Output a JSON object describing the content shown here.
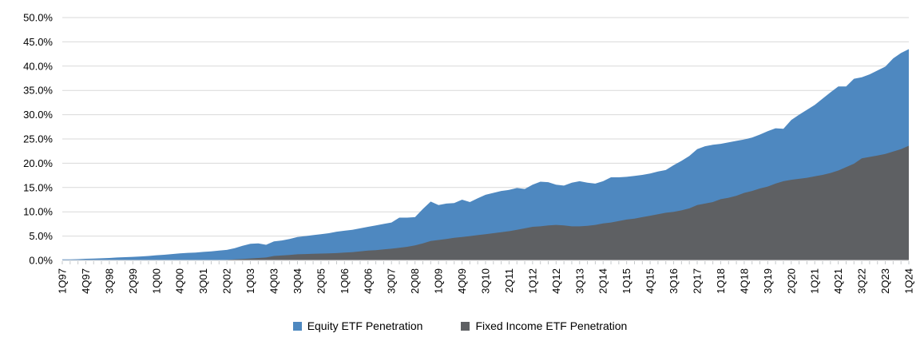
{
  "chart_data": {
    "type": "area",
    "overlapping": true,
    "title": "",
    "xlabel": "",
    "ylabel": "",
    "ylim": [
      0,
      50
    ],
    "y_tick_step": 5,
    "grid": true,
    "legend_position": "bottom",
    "y_tick_labels": [
      "0.0%",
      "5.0%",
      "10.0%",
      "15.0%",
      "20.0%",
      "25.0%",
      "30.0%",
      "35.0%",
      "40.0%",
      "45.0%",
      "50.0%"
    ],
    "x_tick_labels": [
      "1Q97",
      "4Q97",
      "3Q98",
      "2Q99",
      "1Q00",
      "4Q00",
      "3Q01",
      "2Q02",
      "1Q03",
      "4Q03",
      "3Q04",
      "2Q05",
      "1Q06",
      "4Q06",
      "3Q07",
      "2Q08",
      "1Q09",
      "4Q09",
      "3Q10",
      "2Q11",
      "1Q12",
      "4Q12",
      "3Q13",
      "2Q14",
      "1Q15",
      "4Q15",
      "3Q16",
      "2Q17",
      "1Q18",
      "4Q18",
      "3Q19",
      "2Q20",
      "1Q21",
      "4Q21",
      "3Q22",
      "2Q23",
      "1Q24"
    ],
    "x_tick_label_every": 3,
    "x": [
      "1Q97",
      "2Q97",
      "3Q97",
      "4Q97",
      "1Q98",
      "2Q98",
      "3Q98",
      "4Q98",
      "1Q99",
      "2Q99",
      "3Q99",
      "4Q99",
      "1Q00",
      "2Q00",
      "3Q00",
      "4Q00",
      "1Q01",
      "2Q01",
      "3Q01",
      "4Q01",
      "1Q02",
      "2Q02",
      "3Q02",
      "4Q02",
      "1Q03",
      "2Q03",
      "3Q03",
      "4Q03",
      "1Q04",
      "2Q04",
      "3Q04",
      "4Q04",
      "1Q05",
      "2Q05",
      "3Q05",
      "4Q05",
      "1Q06",
      "2Q06",
      "3Q06",
      "4Q06",
      "1Q07",
      "2Q07",
      "3Q07",
      "4Q07",
      "1Q08",
      "2Q08",
      "3Q08",
      "4Q08",
      "1Q09",
      "2Q09",
      "3Q09",
      "4Q09",
      "1Q10",
      "2Q10",
      "3Q10",
      "4Q10",
      "1Q11",
      "2Q11",
      "3Q11",
      "4Q11",
      "1Q12",
      "2Q12",
      "3Q12",
      "4Q12",
      "1Q13",
      "2Q13",
      "3Q13",
      "4Q13",
      "1Q14",
      "2Q14",
      "3Q14",
      "4Q14",
      "1Q15",
      "2Q15",
      "3Q15",
      "4Q15",
      "1Q16",
      "2Q16",
      "3Q16",
      "4Q16",
      "1Q17",
      "2Q17",
      "3Q17",
      "4Q17",
      "1Q18",
      "2Q18",
      "3Q18",
      "4Q18",
      "1Q19",
      "2Q19",
      "3Q19",
      "4Q19",
      "1Q20",
      "2Q20",
      "3Q20",
      "4Q20",
      "1Q21",
      "2Q21",
      "3Q21",
      "4Q21",
      "1Q22",
      "2Q22",
      "3Q22",
      "4Q22",
      "1Q23",
      "2Q23",
      "3Q23",
      "4Q23",
      "1Q24"
    ],
    "series": [
      {
        "name": "Equity ETF Penetration",
        "color": "#4E88C0",
        "values": [
          0.2,
          0.22,
          0.25,
          0.33,
          0.38,
          0.42,
          0.5,
          0.6,
          0.65,
          0.72,
          0.8,
          0.9,
          1.05,
          1.15,
          1.3,
          1.45,
          1.55,
          1.6,
          1.75,
          1.85,
          2.0,
          2.15,
          2.5,
          3.0,
          3.4,
          3.5,
          3.2,
          3.9,
          4.1,
          4.4,
          4.8,
          5.0,
          5.2,
          5.4,
          5.6,
          5.9,
          6.1,
          6.3,
          6.6,
          6.9,
          7.2,
          7.5,
          7.8,
          8.8,
          8.8,
          8.9,
          10.6,
          12.1,
          11.4,
          11.7,
          11.8,
          12.5,
          12.0,
          12.8,
          13.5,
          13.9,
          14.3,
          14.5,
          14.9,
          14.7,
          15.6,
          16.2,
          16.1,
          15.6,
          15.4,
          16.0,
          16.3,
          16.0,
          15.8,
          16.3,
          17.1,
          17.1,
          17.2,
          17.4,
          17.6,
          17.9,
          18.3,
          18.6,
          19.6,
          20.5,
          21.5,
          22.9,
          23.5,
          23.8,
          24.0,
          24.3,
          24.6,
          24.9,
          25.3,
          25.9,
          26.6,
          27.2,
          27.1,
          28.9,
          30.0,
          31.0,
          32.0,
          33.3,
          34.6,
          35.8,
          35.8,
          37.4,
          37.7,
          38.3,
          39.1,
          39.9,
          41.6,
          42.7,
          43.5
        ]
      },
      {
        "name": "Fixed Income ETF Penetration",
        "color": "#5E6063",
        "values": [
          0,
          0,
          0,
          0,
          0,
          0,
          0,
          0,
          0,
          0,
          0,
          0,
          0,
          0,
          0,
          0,
          0,
          0,
          0,
          0.05,
          0.05,
          0.1,
          0.2,
          0.3,
          0.4,
          0.5,
          0.6,
          0.9,
          1.0,
          1.1,
          1.25,
          1.3,
          1.35,
          1.4,
          1.45,
          1.5,
          1.6,
          1.7,
          1.85,
          2.0,
          2.1,
          2.25,
          2.4,
          2.6,
          2.8,
          3.1,
          3.5,
          4.0,
          4.2,
          4.4,
          4.65,
          4.8,
          5.0,
          5.2,
          5.4,
          5.6,
          5.8,
          6.0,
          6.3,
          6.6,
          6.9,
          7.0,
          7.2,
          7.3,
          7.2,
          7.0,
          7.0,
          7.1,
          7.3,
          7.6,
          7.8,
          8.1,
          8.4,
          8.6,
          8.9,
          9.2,
          9.5,
          9.8,
          10.0,
          10.3,
          10.7,
          11.4,
          11.7,
          12.0,
          12.6,
          12.9,
          13.3,
          13.9,
          14.3,
          14.8,
          15.2,
          15.8,
          16.3,
          16.6,
          16.8,
          17.0,
          17.3,
          17.6,
          18.0,
          18.5,
          19.2,
          19.9,
          21.0,
          21.3,
          21.6,
          21.9,
          22.4,
          22.9,
          23.6
        ]
      }
    ],
    "colors": {
      "gridline": "#D9D9D9",
      "axis_line": "#D9D9D9",
      "tick_mark": "#C6C9CB",
      "label_text": "#000000"
    }
  },
  "legend": {
    "items": [
      {
        "label": "Equity ETF Penetration",
        "color": "#4E88C0"
      },
      {
        "label": "Fixed Income ETF Penetration",
        "color": "#5E6063"
      }
    ]
  }
}
